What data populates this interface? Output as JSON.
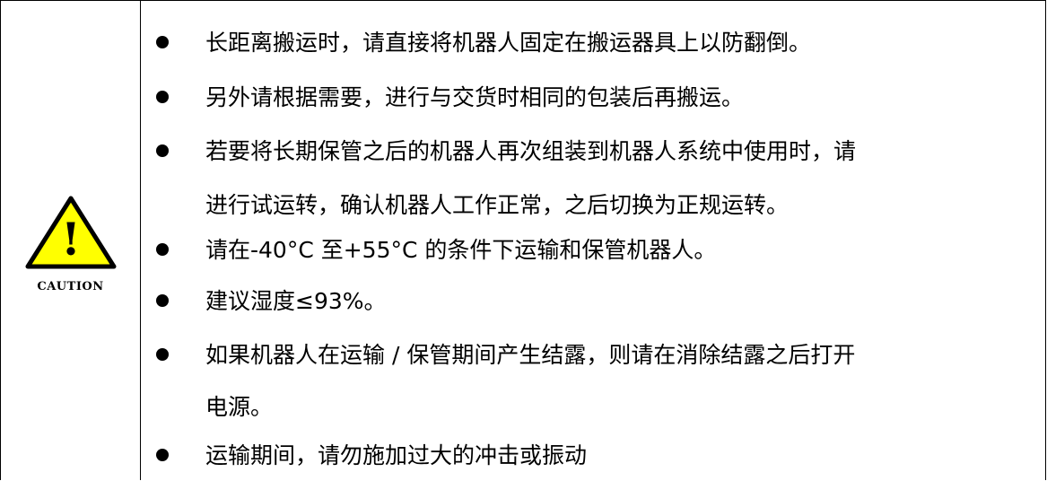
{
  "caution_icon": {
    "symbol": "!",
    "label": "CAUTION",
    "fill_color": "#FFFF00",
    "stroke_color": "#000000"
  },
  "notes": [
    {
      "lines": [
        "长距离搬运时，请直接将机器人固定在搬运器具上以防翻倒。"
      ]
    },
    {
      "lines": [
        "另外请根据需要，进行与交货时相同的包装后再搬运。"
      ]
    },
    {
      "lines": [
        "若要将长期保管之后的机器人再次组装到机器人系统中使用时，请",
        "进行试运转，确认机器人工作正常，之后切换为正规运转。"
      ]
    },
    {
      "lines": [
        "请在-40°C 至+55°C 的条件下运输和保管机器人。"
      ]
    },
    {
      "lines": [
        "建议湿度≤93%。"
      ]
    },
    {
      "lines": [
        "如果机器人在运输 / 保管期间产生结露，则请在消除结露之后打开",
        "电源。"
      ]
    },
    {
      "lines": [
        "运输期间，请勿施加过大的冲击或振动"
      ]
    }
  ]
}
